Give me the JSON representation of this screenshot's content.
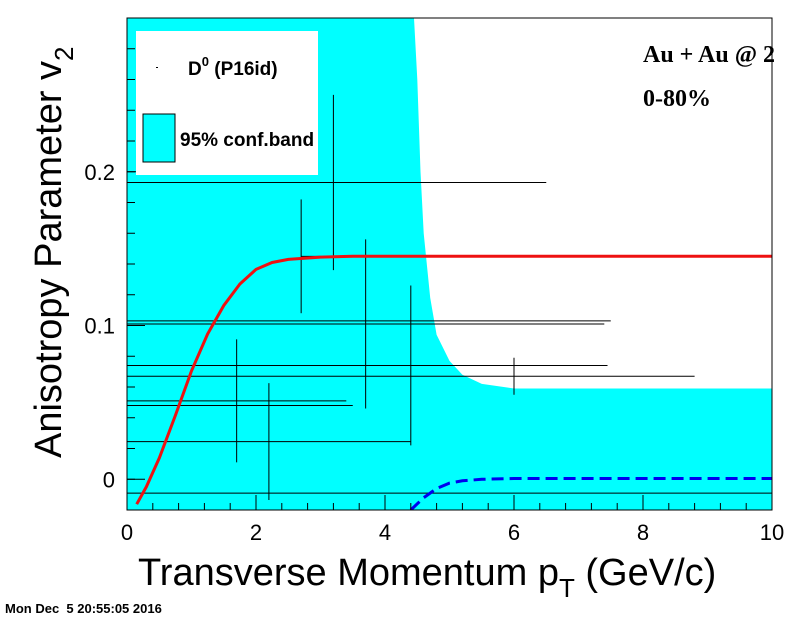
{
  "colors": {
    "band": "#00ffff",
    "fit": "#ee1111",
    "background_fit": "#0000ee",
    "data": "#000000"
  },
  "timestamp": "Mon Dec  5 20:55:05 2016",
  "annotation": {
    "line1": "Au + Au @ 2",
    "line2": "0-80%"
  },
  "chart_data": {
    "type": "scatter",
    "xlabel": "Transverse Momentum p",
    "xlabel_sub": "T",
    "xlabel_suffix": " (GeV/c)",
    "ylabel": "Anisotropy Parameter v",
    "ylabel_sub": "2",
    "xlim": [
      0,
      10
    ],
    "ylim": [
      -0.02,
      0.3
    ],
    "x_ticks": [
      0,
      2,
      4,
      6,
      8,
      10
    ],
    "y_ticks": [
      0,
      0.1,
      0.2
    ],
    "x_tick_labels": [
      "0",
      "2",
      "4",
      "6",
      "8",
      "10"
    ],
    "y_tick_labels": [
      "0",
      "0.1",
      "0.2"
    ],
    "legend": {
      "position": "top-left",
      "entries": [
        {
          "label": "D",
          "sup": "0",
          "suffix": " (P16id)"
        },
        {
          "label": "95% conf.band"
        }
      ]
    },
    "series": [
      {
        "name": "D0 (P16id)",
        "kind": "points",
        "points": [
          {
            "x": 2.7,
            "y": 0.145,
            "xerr": [
              0,
              0.3
            ],
            "yerr": [
              0.037,
              0.037
            ]
          },
          {
            "x": 3.2,
            "y": 0.193,
            "xerr": [
              3.2,
              3.3
            ],
            "yerr": [
              0.057,
              0.057
            ]
          },
          {
            "x": 3.7,
            "y": 0.101,
            "xerr": [
              3.7,
              3.7
            ],
            "yerr": [
              0.055,
              0.055
            ]
          },
          {
            "x": 4.4,
            "y": 0.074,
            "xerr": [
              4.4,
              3.05
            ],
            "yerr": [
              0.052,
              0.052
            ]
          },
          {
            "x": 1.7,
            "y": 0.051,
            "xerr": [
              1.7,
              1.7
            ],
            "yerr": [
              0.04,
              0.04
            ]
          },
          {
            "x": 2.2,
            "y": 0.0245,
            "xerr": [
              2.2,
              2.2
            ],
            "yerr": [
              0.038,
              0.038
            ]
          },
          {
            "x": 6.0,
            "y": 0.067,
            "xerr": [
              6.0,
              2.8
            ],
            "yerr": [
              0.012,
              0.012
            ]
          },
          {
            "x": 0,
            "y": 0.103,
            "xerr": [
              0,
              7.5
            ],
            "yerr": [
              0,
              0
            ]
          },
          {
            "x": 0,
            "y": 0.048,
            "xerr": [
              0,
              3.5
            ],
            "yerr": [
              0,
              0
            ]
          },
          {
            "x": 0,
            "y": -0.009,
            "xerr": [
              0,
              10
            ],
            "yerr": [
              0,
              0
            ]
          }
        ]
      },
      {
        "name": "95% conf.band",
        "kind": "band",
        "x": [
          0,
          4.45,
          4.5,
          4.55,
          4.6,
          4.7,
          4.8,
          5.0,
          5.2,
          5.5,
          6.0,
          8.0,
          10.0
        ],
        "upper": [
          0.3,
          0.3,
          0.26,
          0.2,
          0.16,
          0.118,
          0.094,
          0.077,
          0.068,
          0.062,
          0.059,
          0.059,
          0.059
        ],
        "lower": [
          -0.02,
          -0.02,
          -0.02,
          -0.02,
          -0.02,
          -0.02,
          -0.02,
          -0.02,
          -0.02,
          -0.02,
          -0.02,
          -0.02,
          -0.02
        ]
      },
      {
        "name": "fit",
        "kind": "line",
        "x": [
          0.15,
          0.3,
          0.5,
          0.75,
          1.0,
          1.25,
          1.5,
          1.75,
          2.0,
          2.25,
          2.5,
          3.0,
          3.5,
          4.0,
          5.0,
          6.0,
          8.0,
          10.0
        ],
        "y": [
          -0.0162,
          -0.005,
          0.0138,
          0.0415,
          0.0705,
          0.0945,
          0.113,
          0.127,
          0.1365,
          0.141,
          0.143,
          0.1445,
          0.145,
          0.145,
          0.145,
          0.145,
          0.145,
          0.145
        ]
      },
      {
        "name": "background fit",
        "kind": "dashed-line",
        "x": [
          4.4,
          4.6,
          4.8,
          5.0,
          5.2,
          5.5,
          6.0,
          7.0,
          8.0,
          10.0
        ],
        "y": [
          -0.02,
          -0.012,
          -0.006,
          -0.0025,
          -0.001,
          0.0,
          0.0005,
          0.0005,
          0.0005,
          0.0005
        ]
      }
    ]
  }
}
